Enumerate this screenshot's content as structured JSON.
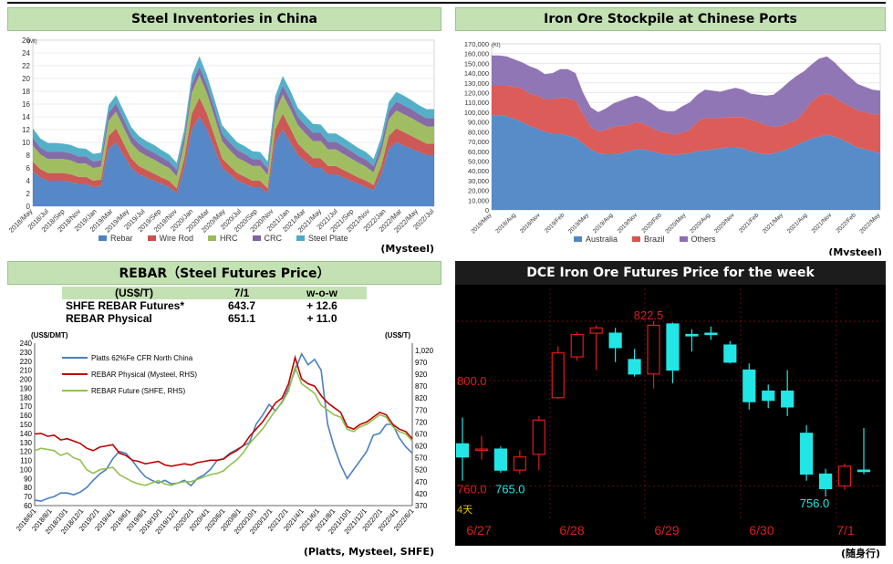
{
  "panels": {
    "inv": {
      "title": "Steel Inventories in China",
      "source": "(Mysteel)"
    },
    "ore": {
      "title": "Iron Ore Stockpile at Chinese Ports",
      "source": "(Mysteel)"
    },
    "rebar": {
      "title": "REBAR（Steel Futures Price）",
      "source": "(Platts, Mysteel, SHFE)"
    },
    "dce": {
      "title": "DCE Iron Ore Futures Price for the week",
      "source": "(随身行)"
    }
  },
  "rebar_table": {
    "header": [
      "(US$/T)",
      "7/1",
      "w-o-w"
    ],
    "rows": [
      [
        "SHFE REBAR Futures*",
        "643.7",
        "+ 12.6"
      ],
      [
        "REBAR Physical",
        "651.1",
        "+ 11.0"
      ]
    ]
  },
  "colors": {
    "rebar": "#4d81c3",
    "wire_rod": "#c9504d",
    "hrc": "#9bbb59",
    "crc": "#8064a2",
    "steel_plate": "#4bacc6",
    "australia": "#4f86c6",
    "brazil": "#d9534f",
    "others": "#8a6fb0",
    "platts": "#4a80c0",
    "physical": "#c00000",
    "future": "#92c050",
    "candle_up": "#e11b1b",
    "candle_down": "#22e6e6"
  },
  "chart_data": [
    {
      "id": "inv",
      "type": "area",
      "stacked": true,
      "unit_label": "(Mt)",
      "ylim": [
        0,
        26
      ],
      "yticks": [
        0,
        2,
        4,
        6,
        8,
        10,
        12,
        14,
        16,
        18,
        20,
        22,
        24,
        26
      ],
      "xticks": [
        "2018/May",
        "2018/Jul",
        "2018/Sep",
        "2018/Nov",
        "2019/Jan",
        "2019/Mar",
        "2019/May",
        "2019/Jul",
        "2019/Sep",
        "2019/Nov",
        "2020/Jan",
        "2020/Mar",
        "2020/May",
        "2020/Jul",
        "2020/Sep",
        "2020/Nov",
        "2021/Jan",
        "2021/Mar",
        "2021/May",
        "2021/Jul",
        "2021/Sep",
        "2021/Nov",
        "2022/Jan",
        "2022/Mar",
        "2022/May",
        "2022/Jul"
      ],
      "series": [
        {
          "name": "Rebar",
          "values": [
            5.5,
            4.5,
            4.0,
            4.0,
            4.0,
            3.8,
            3.5,
            3.5,
            3.0,
            3.2,
            9.0,
            10.0,
            8.0,
            6.0,
            5.0,
            4.5,
            4.0,
            3.5,
            3.0,
            2.0,
            6.0,
            12.0,
            14.0,
            12.0,
            9.0,
            6.0,
            5.0,
            4.0,
            3.5,
            3.0,
            3.0,
            2.0,
            10.0,
            12.0,
            10.0,
            8.0,
            7.0,
            6.0,
            6.0,
            5.0,
            5.0,
            4.5,
            4.0,
            3.5,
            3.0,
            2.5,
            5.0,
            9.0,
            10.0,
            9.5,
            9.0,
            8.5,
            8.0,
            8.0
          ]
        },
        {
          "name": "Wire Rod",
          "values": [
            1.5,
            1.3,
            1.2,
            1.2,
            1.2,
            1.2,
            1.1,
            1.1,
            1.0,
            1.0,
            2.0,
            2.2,
            1.8,
            1.5,
            1.3,
            1.2,
            1.1,
            1.0,
            1.0,
            0.8,
            1.5,
            2.5,
            3.0,
            2.5,
            2.0,
            1.5,
            1.3,
            1.2,
            1.1,
            1.0,
            1.0,
            0.8,
            2.0,
            2.5,
            2.2,
            1.8,
            1.6,
            1.5,
            1.5,
            1.3,
            1.3,
            1.2,
            1.1,
            1.0,
            1.0,
            0.8,
            1.3,
            2.0,
            2.2,
            2.1,
            2.0,
            1.9,
            1.8,
            1.8
          ]
        },
        {
          "name": "HRC",
          "values": [
            2.5,
            2.3,
            2.2,
            2.2,
            2.2,
            2.2,
            2.1,
            2.1,
            2.0,
            2.0,
            2.4,
            2.6,
            2.5,
            2.4,
            2.3,
            2.2,
            2.2,
            2.1,
            2.0,
            1.9,
            2.3,
            3.3,
            3.5,
            3.2,
            3.0,
            2.7,
            2.5,
            2.4,
            2.4,
            2.3,
            2.3,
            2.1,
            2.7,
            3.0,
            3.0,
            2.9,
            2.8,
            2.7,
            2.7,
            2.6,
            2.6,
            2.5,
            2.4,
            2.3,
            2.2,
            2.0,
            2.2,
            2.6,
            2.8,
            2.8,
            2.8,
            2.7,
            2.7,
            2.7
          ]
        },
        {
          "name": "CRC",
          "values": [
            1.2,
            1.1,
            1.1,
            1.1,
            1.1,
            1.1,
            1.1,
            1.1,
            1.0,
            1.0,
            1.2,
            1.3,
            1.3,
            1.2,
            1.2,
            1.1,
            1.1,
            1.1,
            1.0,
            1.0,
            1.1,
            1.3,
            1.4,
            1.3,
            1.3,
            1.2,
            1.2,
            1.2,
            1.2,
            1.1,
            1.1,
            1.0,
            1.2,
            1.4,
            1.4,
            1.3,
            1.3,
            1.3,
            1.3,
            1.2,
            1.2,
            1.2,
            1.2,
            1.1,
            1.1,
            1.0,
            1.1,
            1.3,
            1.4,
            1.4,
            1.4,
            1.3,
            1.3,
            1.3
          ]
        },
        {
          "name": "Steel Plate",
          "values": [
            1.5,
            1.4,
            1.4,
            1.4,
            1.3,
            1.3,
            1.3,
            1.2,
            1.2,
            1.2,
            1.2,
            1.3,
            1.3,
            1.3,
            1.2,
            1.2,
            1.2,
            1.1,
            1.1,
            1.1,
            1.1,
            1.4,
            1.6,
            1.5,
            1.4,
            1.3,
            1.3,
            1.2,
            1.2,
            1.2,
            1.1,
            1.1,
            1.3,
            1.5,
            1.5,
            1.4,
            1.4,
            1.4,
            1.3,
            1.3,
            1.3,
            1.3,
            1.2,
            1.2,
            1.2,
            1.1,
            1.2,
            1.4,
            1.5,
            1.5,
            1.4,
            1.4,
            1.4,
            1.4
          ]
        }
      ]
    },
    {
      "id": "ore",
      "type": "area",
      "stacked": true,
      "unit_label": "(Kt)",
      "ylim": [
        0,
        170000
      ],
      "yticks": [
        "0",
        "10,000",
        "20,000",
        "30,000",
        "40,000",
        "50,000",
        "60,000",
        "70,000",
        "80,000",
        "90,000",
        "100,000",
        "110,000",
        "120,000",
        "130,000",
        "140,000",
        "150,000",
        "160,000",
        "170,000"
      ],
      "xticks": [
        "2018/May",
        "2018/Aug",
        "2018/Nov",
        "2019/Feb",
        "2019/May",
        "2019/Aug",
        "2019/Nov",
        "2020/Feb",
        "2020/May",
        "2020/Aug",
        "2020/Nov",
        "2021/Feb",
        "2021/May",
        "2021/Aug",
        "2021/Nov",
        "2022/Feb",
        "2022/May"
      ],
      "series": [
        {
          "name": "Australia",
          "values": [
            97000,
            97000,
            96000,
            93000,
            90000,
            86000,
            83000,
            80000,
            78000,
            78000,
            76000,
            74000,
            68000,
            62000,
            58000,
            57000,
            57000,
            58000,
            60000,
            62000,
            62000,
            60000,
            58000,
            57000,
            56000,
            57000,
            58000,
            60000,
            61000,
            62000,
            63000,
            64000,
            64000,
            63000,
            60000,
            58000,
            57000,
            58000,
            60000,
            63000,
            66000,
            70000,
            73000,
            75000,
            77000,
            75000,
            72000,
            68000,
            64000,
            62000,
            60000,
            58000
          ]
        },
        {
          "name": "Brazil",
          "values": [
            30000,
            30000,
            31000,
            33000,
            34000,
            33000,
            34000,
            33000,
            35000,
            37000,
            38000,
            38000,
            30000,
            23000,
            22000,
            25000,
            28000,
            28000,
            27000,
            28000,
            26000,
            24000,
            22000,
            22000,
            21000,
            22000,
            24000,
            30000,
            33000,
            32000,
            31000,
            31000,
            31000,
            32000,
            32000,
            32000,
            30000,
            27000,
            26000,
            26000,
            26000,
            30000,
            38000,
            42000,
            42000,
            40000,
            38000,
            38000,
            38000,
            38000,
            38000,
            40000
          ]
        },
        {
          "name": "Others",
          "values": [
            31000,
            31000,
            30000,
            28000,
            27000,
            28000,
            27000,
            26000,
            27000,
            29000,
            30000,
            28000,
            22000,
            20000,
            20000,
            22000,
            24000,
            26000,
            28000,
            27000,
            26000,
            25000,
            23000,
            22000,
            24000,
            27000,
            28000,
            28000,
            29000,
            28000,
            27000,
            28000,
            30000,
            28000,
            27000,
            28000,
            30000,
            33000,
            38000,
            42000,
            45000,
            42000,
            38000,
            38000,
            38000,
            36000,
            33000,
            30000,
            27000,
            26000,
            25000,
            24000
          ]
        }
      ]
    },
    {
      "id": "rebar",
      "type": "line",
      "ylabel": "(US$/DMT)",
      "y2label": "(US$/T)",
      "ylim": [
        60,
        240
      ],
      "y2lim": [
        370,
        1050
      ],
      "yticks": [
        60,
        70,
        80,
        90,
        100,
        110,
        120,
        130,
        140,
        150,
        160,
        170,
        180,
        190,
        200,
        210,
        220,
        230,
        240
      ],
      "y2ticks": [
        "370",
        "420",
        "470",
        "520",
        "570",
        "620",
        "670",
        "720",
        "770",
        "820",
        "870",
        "920",
        "970",
        "1,020"
      ],
      "xticks": [
        "2018/6/1",
        "2018/8/1",
        "2018/10/1",
        "2018/12/1",
        "2019/2/1",
        "2019/4/1",
        "2019/6/1",
        "2019/8/1",
        "2019/10/1",
        "2019/12/1",
        "2020/2/1",
        "2020/4/1",
        "2020/6/1",
        "2020/8/1",
        "2020/10/1",
        "2020/12/1",
        "2021/2/1",
        "2021/4/1",
        "2021/6/1",
        "2021/8/1",
        "2021/10/1",
        "2021/12/1",
        "2022/2/1",
        "2022/4/1",
        "2022/6/1"
      ],
      "series": [
        {
          "name": "Platts 62%Fe CFR North China",
          "axis": "left",
          "values": [
            66,
            65,
            68,
            70,
            74,
            74,
            72,
            75,
            80,
            88,
            95,
            100,
            112,
            120,
            118,
            110,
            100,
            92,
            88,
            85,
            88,
            84,
            85,
            88,
            82,
            90,
            94,
            100,
            110,
            112,
            118,
            122,
            126,
            130,
            150,
            160,
            172,
            165,
            175,
            190,
            210,
            228,
            216,
            222,
            210,
            150,
            125,
            105,
            90,
            100,
            110,
            120,
            138,
            140,
            150,
            150,
            135,
            125,
            118
          ]
        },
        {
          "name": "REBAR Physical (Mysteel, RHS)",
          "axis": "right",
          "values": [
            670,
            672,
            660,
            665,
            645,
            650,
            640,
            630,
            610,
            600,
            615,
            620,
            625,
            590,
            580,
            560,
            555,
            545,
            550,
            555,
            540,
            535,
            540,
            545,
            540,
            550,
            555,
            560,
            560,
            565,
            585,
            600,
            620,
            660,
            690,
            720,
            760,
            800,
            820,
            880,
            990,
            900,
            880,
            870,
            830,
            800,
            780,
            760,
            700,
            690,
            710,
            720,
            740,
            760,
            750,
            710,
            690,
            680,
            650
          ]
        },
        {
          "name": "REBAR Future (SHFE, RHS)",
          "axis": "right",
          "values": [
            600,
            610,
            605,
            600,
            580,
            590,
            570,
            560,
            520,
            505,
            520,
            525,
            530,
            500,
            485,
            470,
            460,
            455,
            465,
            475,
            460,
            455,
            465,
            470,
            470,
            480,
            490,
            500,
            505,
            515,
            540,
            560,
            590,
            630,
            660,
            690,
            730,
            770,
            800,
            850,
            950,
            880,
            860,
            840,
            790,
            770,
            750,
            740,
            690,
            680,
            700,
            710,
            730,
            750,
            740,
            700,
            680,
            670,
            640
          ]
        }
      ]
    },
    {
      "id": "dce",
      "type": "candlestick",
      "ylim": [
        747,
        835
      ],
      "price_labels": [
        "822.5",
        "800.0",
        "760.0",
        "765.0",
        "756.0"
      ],
      "corner_label": "4天",
      "xticks": [
        "6/27",
        "6/28",
        "6/29",
        "6/30",
        "7/1"
      ],
      "candles": [
        {
          "o": 776.0,
          "c": 771.0,
          "h": 786.0,
          "l": 762.0
        },
        {
          "o": 774.0,
          "c": 774.0,
          "h": 779.0,
          "l": 770.0
        },
        {
          "o": 774.0,
          "c": 766.0,
          "h": 775.0,
          "l": 765.0
        },
        {
          "o": 766.0,
          "c": 771.0,
          "h": 773.5,
          "l": 764.5
        },
        {
          "o": 772.0,
          "c": 785.0,
          "h": 786.5,
          "l": 766.0
        },
        {
          "o": 793.5,
          "c": 810.5,
          "h": 813.0,
          "l": 793.0
        },
        {
          "o": 809.0,
          "c": 817.5,
          "h": 818.5,
          "l": 807.5
        },
        {
          "o": 818.0,
          "c": 820.0,
          "h": 821.0,
          "l": 804.0
        },
        {
          "o": 818.0,
          "c": 812.5,
          "h": 820.0,
          "l": 807.0
        },
        {
          "o": 808.0,
          "c": 802.5,
          "h": 812.0,
          "l": 801.5
        },
        {
          "o": 802.5,
          "c": 821.0,
          "h": 822.5,
          "l": 797.0
        },
        {
          "o": 821.5,
          "c": 804.0,
          "h": 822.0,
          "l": 799.0
        },
        {
          "o": 817.5,
          "c": 817.0,
          "h": 819.5,
          "l": 811.0
        },
        {
          "o": 818.0,
          "c": 817.5,
          "h": 820.5,
          "l": 815.5
        },
        {
          "o": 813.5,
          "c": 807.0,
          "h": 815.0,
          "l": 806.5
        },
        {
          "o": 804.0,
          "c": 792.0,
          "h": 806.5,
          "l": 789.0
        },
        {
          "o": 796.0,
          "c": 792.5,
          "h": 798.5,
          "l": 789.5
        },
        {
          "o": 796.0,
          "c": 790.0,
          "h": 804.0,
          "l": 786.5
        },
        {
          "o": 780.0,
          "c": 764.5,
          "h": 783.0,
          "l": 762.0
        },
        {
          "o": 764.5,
          "c": 759.0,
          "h": 766.5,
          "l": 756.0
        },
        {
          "o": 760.0,
          "c": 767.5,
          "h": 768.5,
          "l": 758.5
        },
        {
          "o": 766.0,
          "c": 765.5,
          "h": 782.0,
          "l": 764.5
        }
      ]
    }
  ]
}
